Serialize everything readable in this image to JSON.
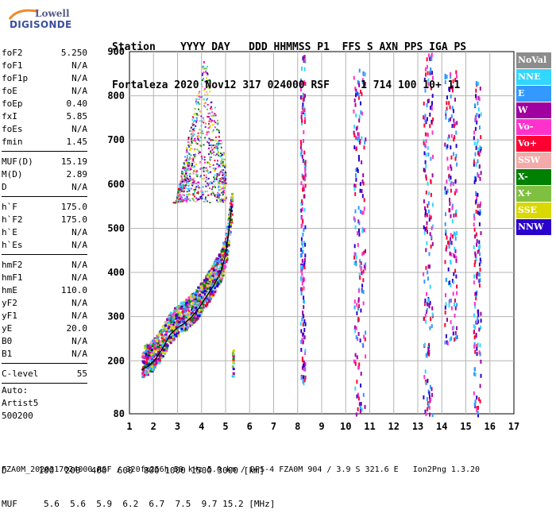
{
  "logo": {
    "line1": "Lowell",
    "line2": "DIGISONDE"
  },
  "header": {
    "line1": "Station    YYYY DAY   DDD HHMMSS P1  FFS S AXN PPS IGA PS",
    "line2": "Fortaleza 2020 Nov12 317 024000 RSF     1 714 100 10+ 11"
  },
  "params": {
    "group1": [
      {
        "k": "foF2",
        "v": "5.250"
      },
      {
        "k": "foF1",
        "v": "N/A"
      },
      {
        "k": "foF1p",
        "v": "N/A"
      },
      {
        "k": "foE",
        "v": "N/A"
      },
      {
        "k": "foEp",
        "v": "0.40"
      },
      {
        "k": "fxI",
        "v": "5.85"
      },
      {
        "k": "foEs",
        "v": "N/A"
      },
      {
        "k": "fmin",
        "v": "1.45"
      }
    ],
    "group2": [
      {
        "k": "MUF(D)",
        "v": "15.19"
      },
      {
        "k": "M(D)",
        "v": "2.89"
      },
      {
        "k": "D",
        "v": "N/A"
      }
    ],
    "group3": [
      {
        "k": "h`F",
        "v": "175.0"
      },
      {
        "k": "h`F2",
        "v": "175.0"
      },
      {
        "k": "h`E",
        "v": "N/A"
      },
      {
        "k": "h`Es",
        "v": "N/A"
      }
    ],
    "group4": [
      {
        "k": "hmF2",
        "v": "N/A"
      },
      {
        "k": "hmF1",
        "v": "N/A"
      },
      {
        "k": "hmE",
        "v": "110.0"
      },
      {
        "k": "yF2",
        "v": "N/A"
      },
      {
        "k": "yF1",
        "v": "N/A"
      },
      {
        "k": "yE",
        "v": "20.0"
      },
      {
        "k": "B0",
        "v": "N/A"
      },
      {
        "k": "B1",
        "v": "N/A"
      }
    ],
    "group5": [
      {
        "k": "C-level",
        "v": "55"
      }
    ]
  },
  "auto": {
    "line1": "Auto:",
    "line2": "Artist5",
    "line3": "500200"
  },
  "legend": [
    {
      "label": "NoVal",
      "color": "#8c8c8c"
    },
    {
      "label": "NNE",
      "color": "#33d6ff"
    },
    {
      "label": "E",
      "color": "#3399ff"
    },
    {
      "label": "W",
      "color": "#a000a0"
    },
    {
      "label": "Vo-",
      "color": "#ff33cc"
    },
    {
      "label": "Vo+",
      "color": "#ff0033"
    },
    {
      "label": "SSW",
      "color": "#f4aaaa"
    },
    {
      "label": "X-",
      "color": "#008000"
    },
    {
      "label": "X+",
      "color": "#80c040"
    },
    {
      "label": "SSE",
      "color": "#d9d900"
    },
    {
      "label": "NNW",
      "color": "#2a00cc"
    }
  ],
  "muf_table": {
    "d_row": "D      100  200  400  600  800 1000 1500 3000 [km]",
    "muf_row": "MUF     5.6  5.6  5.9  6.2  6.7  7.5  9.7 15.2 [MHz]"
  },
  "footer": "FZA0M_2020317024000.RSF / 320fx256h 50 kHz 5.0 km / DPS-4 FZA0M 904 / 3.9 S 321.6 E   Ion2Png 1.3.20",
  "chart_data": {
    "type": "scatter",
    "title": "",
    "xlabel": "",
    "ylabel": "",
    "xlim": [
      1,
      17
    ],
    "ylim": [
      80,
      900
    ],
    "x_ticks": [
      1,
      2,
      3,
      4,
      5,
      6,
      7,
      8,
      9,
      10,
      11,
      12,
      13,
      14,
      15,
      16,
      17
    ],
    "y_ticks": [
      80,
      200,
      300,
      400,
      500,
      600,
      700,
      800,
      900
    ],
    "grid": true,
    "trace_line": {
      "x": [
        1.5,
        1.8,
        2.1,
        2.4,
        2.7,
        3.0,
        3.3,
        3.6,
        3.9,
        4.2,
        4.5,
        4.8,
        5.0,
        5.15,
        5.25
      ],
      "y": [
        180,
        188,
        205,
        230,
        260,
        275,
        285,
        300,
        320,
        345,
        370,
        400,
        440,
        500,
        550
      ]
    },
    "echo_regions": [
      {
        "desc": "F-layer trace",
        "x_range": [
          1.5,
          5.3
        ],
        "y_range": [
          175,
          560
        ]
      },
      {
        "desc": "spread echoes",
        "x_range": [
          2.8,
          5.0
        ],
        "y_range": [
          560,
          900
        ]
      },
      {
        "desc": "interference band",
        "x_range": [
          10.3,
          10.8
        ],
        "y_range": [
          80,
          880
        ]
      },
      {
        "desc": "interference band",
        "x_range": [
          13.2,
          13.6
        ],
        "y_range": [
          80,
          900
        ]
      },
      {
        "desc": "interference band",
        "x_range": [
          14.1,
          14.6
        ],
        "y_range": [
          240,
          860
        ]
      },
      {
        "desc": "interference band",
        "x_range": [
          15.3,
          15.6
        ],
        "y_range": [
          80,
          840
        ]
      },
      {
        "desc": "interference band",
        "x_range": [
          8.1,
          8.3
        ],
        "y_range": [
          150,
          900
        ]
      }
    ]
  }
}
